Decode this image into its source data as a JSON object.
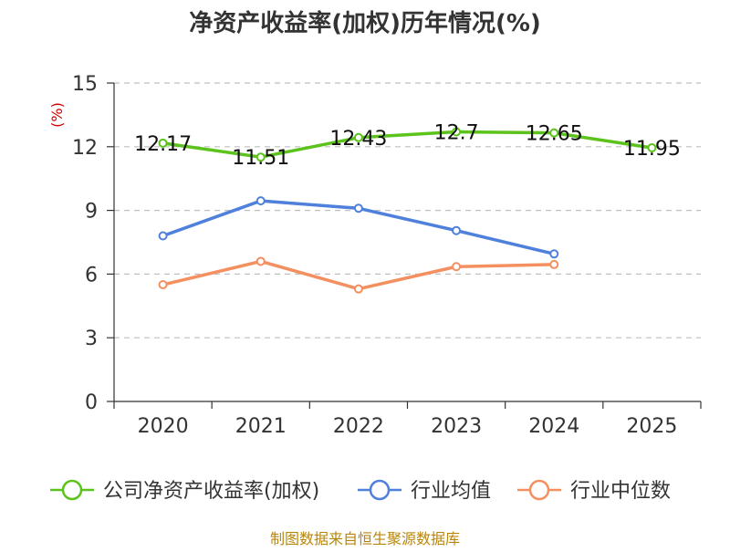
{
  "chart_data": {
    "type": "line",
    "title": "净资产收益率(加权)历年情况(%)",
    "ylabel": "(%)",
    "xlabel": "",
    "categories": [
      "2020",
      "2021",
      "2022",
      "2023",
      "2024",
      "2025"
    ],
    "ylim": [
      0,
      15
    ],
    "yticks": [
      0,
      3,
      6,
      9,
      12,
      15
    ],
    "grid": true,
    "legend_position": "bottom",
    "series": [
      {
        "name": "公司净资产收益率(加权)",
        "values": [
          12.17,
          11.51,
          12.43,
          12.7,
          12.65,
          11.95
        ],
        "labels": [
          "12.17",
          "11.51",
          "12.43",
          "12.7",
          "12.65",
          "11.95"
        ],
        "color": "#5cc21c",
        "show_labels": true
      },
      {
        "name": "行业均值",
        "values": [
          7.8,
          9.45,
          9.1,
          8.05,
          6.95,
          null
        ],
        "color": "#4e80dc",
        "show_labels": false
      },
      {
        "name": "行业中位数",
        "values": [
          5.5,
          6.6,
          5.3,
          6.35,
          6.45,
          null
        ],
        "color": "#f49060",
        "show_labels": false
      }
    ],
    "source": "制图数据来自恒生聚源数据库"
  }
}
